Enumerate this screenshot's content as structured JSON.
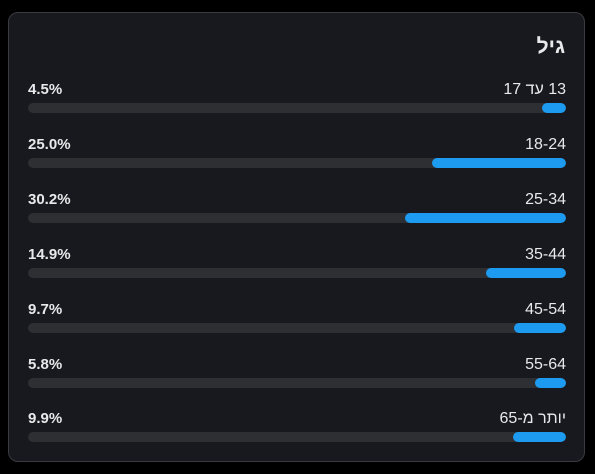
{
  "card": {
    "title": "גיל"
  },
  "colors": {
    "background": "#000000",
    "card": "#18191e",
    "track": "#2e2f33",
    "fill": "#1d9bf0",
    "text": "#e7e9ea"
  },
  "age_groups": [
    {
      "label": "13 עד 17",
      "percent_text": "4.5%",
      "percent": 4.5
    },
    {
      "label": "18-24",
      "percent_text": "25.0%",
      "percent": 25.0
    },
    {
      "label": "25-34",
      "percent_text": "30.2%",
      "percent": 30.2
    },
    {
      "label": "35-44",
      "percent_text": "14.9%",
      "percent": 14.9
    },
    {
      "label": "45-54",
      "percent_text": "9.7%",
      "percent": 9.7
    },
    {
      "label": "55-64",
      "percent_text": "5.8%",
      "percent": 5.8
    },
    {
      "label": "יותר מ-65",
      "percent_text": "9.9%",
      "percent": 9.9
    }
  ]
}
